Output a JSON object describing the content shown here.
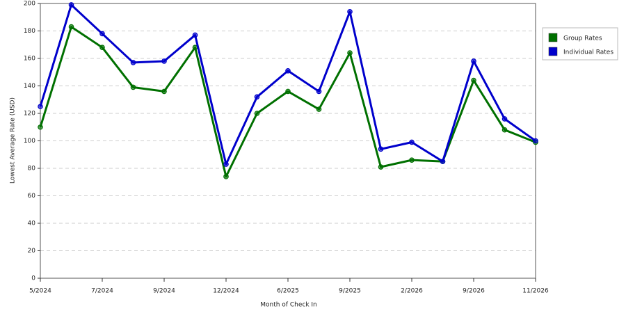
{
  "chart_data": {
    "type": "line",
    "x_label": "Month of Check In",
    "y_label": "Lowest Average Rate (USD)",
    "categories": [
      "5/2024",
      null,
      "7/2024",
      null,
      "9/2024",
      null,
      "12/2024",
      null,
      "6/2025",
      null,
      "9/2025",
      null,
      "2/2026",
      null,
      "9/2026",
      null,
      "11/2026"
    ],
    "series": [
      {
        "name": "Group Rates",
        "color": "#007000",
        "values": [
          110,
          183,
          168,
          139,
          136,
          168,
          74,
          120,
          136,
          123,
          164,
          81,
          86,
          85,
          144,
          108,
          99
        ]
      },
      {
        "name": "Individual Rates",
        "color": "#0000cc",
        "values": [
          125,
          199,
          178,
          157,
          158,
          177,
          83,
          132,
          151,
          136,
          194,
          94,
          99,
          85,
          158,
          116,
          100
        ]
      }
    ],
    "ylim": [
      0,
      200
    ],
    "yticks": [
      0,
      20,
      40,
      60,
      80,
      100,
      120,
      140,
      160,
      180,
      200
    ],
    "grid": true,
    "legend": "right"
  }
}
